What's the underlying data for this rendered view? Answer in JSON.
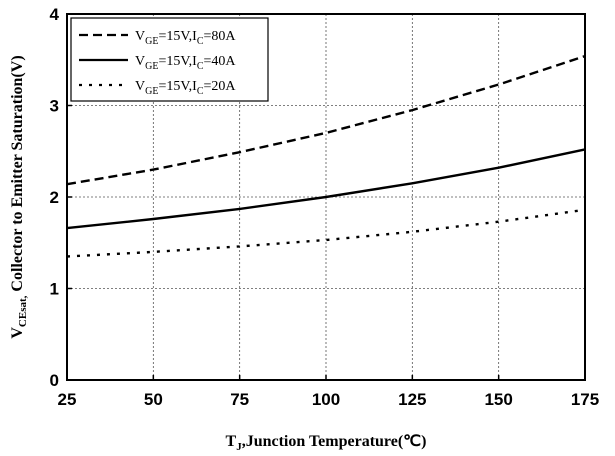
{
  "chart_data": {
    "type": "line",
    "xlabel": {
      "main": "T",
      "sub": "J",
      "rest": ",Junction Temperature(℃)"
    },
    "ylabel": {
      "main": "V",
      "sub": "CEsat,",
      "rest": " Collector to Emitter Saturation(V)"
    },
    "xlim": [
      25,
      175
    ],
    "ylim": [
      0,
      4
    ],
    "x_ticks": [
      25,
      50,
      75,
      100,
      125,
      150,
      175
    ],
    "y_ticks": [
      0,
      1,
      2,
      3,
      4
    ],
    "grid": true,
    "legend_position": "top-left",
    "series": [
      {
        "legend": {
          "v": "V",
          "vsub": "GE",
          "mid": "=15V,I",
          "isub": "C",
          "end": "=80A"
        },
        "style": "dashed",
        "x": [
          25,
          50,
          75,
          100,
          125,
          150,
          175
        ],
        "y": [
          2.14,
          2.3,
          2.49,
          2.7,
          2.95,
          3.23,
          3.54
        ]
      },
      {
        "legend": {
          "v": "V",
          "vsub": "GE",
          "mid": "=15V,I",
          "isub": "C",
          "end": "=40A"
        },
        "style": "solid",
        "x": [
          25,
          50,
          75,
          100,
          125,
          150,
          175
        ],
        "y": [
          1.66,
          1.76,
          1.87,
          2.0,
          2.15,
          2.32,
          2.52
        ]
      },
      {
        "legend": {
          "v": "V",
          "vsub": "GE",
          "mid": "=15V,I",
          "isub": "C",
          "end": "=20A"
        },
        "style": "dotted",
        "x": [
          25,
          50,
          75,
          100,
          125,
          150,
          175
        ],
        "y": [
          1.35,
          1.4,
          1.46,
          1.53,
          1.62,
          1.73,
          1.86
        ]
      }
    ]
  }
}
